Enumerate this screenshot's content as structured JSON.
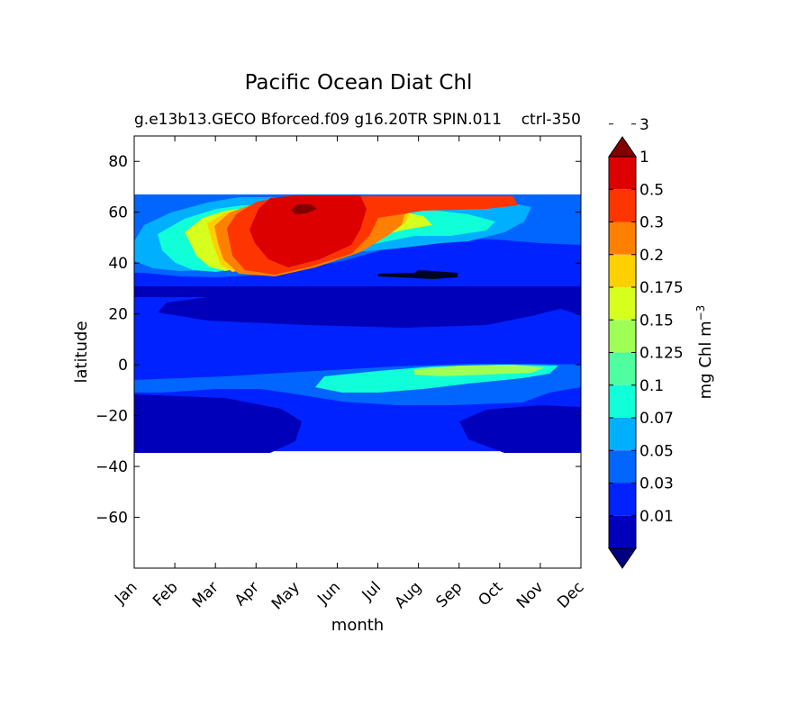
{
  "chart_data": {
    "type": "heatmap",
    "title": "Pacific Ocean Diat Chl",
    "subtitle_left": "g.e13b13.GECO Bforced.f09 g16.20TR SPIN.011",
    "subtitle_right": "ctrl-350",
    "xlabel": "month",
    "ylabel": "latitude",
    "x_ticks": [
      "Jan",
      "Feb",
      "Mar",
      "Apr",
      "May",
      "Jun",
      "Jul",
      "Aug",
      "Sep",
      "Oct",
      "Nov",
      "Dec"
    ],
    "y_ticks": [
      80,
      60,
      40,
      20,
      0,
      -20,
      -40,
      -60
    ],
    "xlim": [
      0,
      11
    ],
    "ylim": [
      -80,
      90
    ],
    "data_lat_range": [
      -34,
      67
    ],
    "colorbar": {
      "label": "mg Chl m",
      "label_exponent": "−3",
      "levels": [
        "0.01",
        "0.03",
        "0.05",
        "0.07",
        "0.1",
        "0.125",
        "0.15",
        "0.175",
        "0.2",
        "0.3",
        "0.5",
        "1",
        "3"
      ],
      "colors": [
        "#000080",
        "#0000bb",
        "#0022ff",
        "#0066ff",
        "#00b0ff",
        "#10ffd8",
        "#4fff9f",
        "#a0ff55",
        "#d6ff1e",
        "#ffd000",
        "#ff8000",
        "#ff3500",
        "#dd0000",
        "#800000"
      ],
      "extend": "both"
    },
    "regions": [
      {
        "name": "background",
        "level": 2
      },
      {
        "name": "subtropical-gyre-north",
        "level": 1
      },
      {
        "name": "subtropical-gyre-south",
        "level": 1
      },
      {
        "name": "southern-ocean-deep",
        "level": 1
      },
      {
        "name": "north-pacific-transition",
        "level": 3
      },
      {
        "name": "north-pacific-bloom-outer",
        "level": 4
      },
      {
        "name": "north-pacific-bloom-mid",
        "level": 5
      },
      {
        "name": "north-pacific-bloom-high",
        "level": 8
      },
      {
        "name": "north-pacific-bloom-peak",
        "level": 9
      },
      {
        "name": "spring-bloom-orange",
        "level": 10
      },
      {
        "name": "spring-bloom-red-orange",
        "level": 11
      },
      {
        "name": "spring-bloom-red",
        "level": 12
      },
      {
        "name": "spring-bloom-maroon",
        "level": 13
      },
      {
        "name": "equatorial-band",
        "level": 3
      },
      {
        "name": "equatorial-upwelling",
        "level": 5
      },
      {
        "name": "equatorial-upwelling-core",
        "level": 7
      }
    ]
  }
}
